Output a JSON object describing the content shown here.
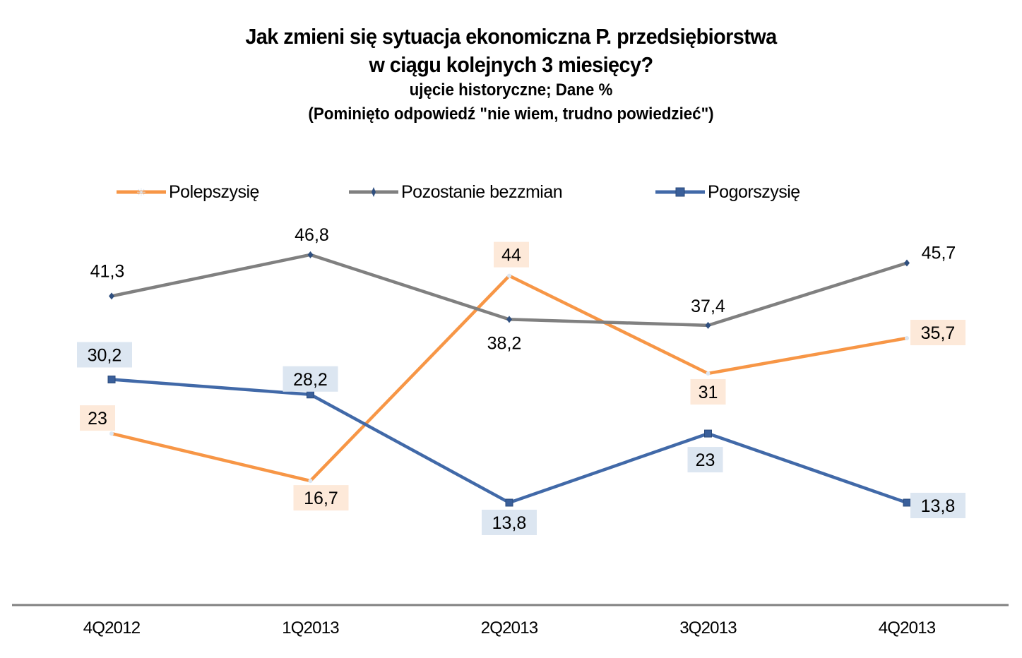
{
  "chart_data": {
    "type": "line",
    "title": "Jak zmieni się sytuacja ekonomiczna P. przedsiębiorstwa",
    "title_line2": "w ciągu kolejnych 3 miesięcy?",
    "subtitle": "ujęcie historyczne; Dane %",
    "note": "(Pominięto odpowiedź  \"nie wiem, trudno powiedzieć\")",
    "xlabel": "",
    "ylabel": "",
    "ylim": [
      0,
      50
    ],
    "grid": false,
    "legend_position": "top",
    "categories": [
      "4Q2012",
      "1Q2013",
      "2Q2013",
      "3Q2013",
      "4Q2013"
    ],
    "series": [
      {
        "name": "Polepszy się",
        "legend_label": "Polepszysię",
        "color": "#F79646",
        "label_bg": "#FDE9D9",
        "marker": "star",
        "values": [
          23,
          16.7,
          44,
          31,
          35.7
        ],
        "labels": [
          "23",
          "16,7",
          "44",
          "31",
          "35,7"
        ]
      },
      {
        "name": "Pozostanie bez zmian",
        "legend_label": "Pozostanie bezzmian",
        "color": "#808080",
        "label_bg": "",
        "marker": "diamond",
        "values": [
          41.3,
          46.8,
          38.2,
          37.4,
          45.7
        ],
        "labels": [
          "41,3",
          "46,8",
          "38,2",
          "37,4",
          "45,7"
        ]
      },
      {
        "name": "Pogorszy się",
        "legend_label": "Pogorszysię",
        "color": "#4169A8",
        "label_bg": "#DCE6F1",
        "marker": "square",
        "values": [
          30.2,
          28.2,
          13.8,
          23,
          13.8
        ],
        "labels": [
          "30,2",
          "28,2",
          "13,8",
          "23",
          "13,8"
        ]
      }
    ]
  }
}
